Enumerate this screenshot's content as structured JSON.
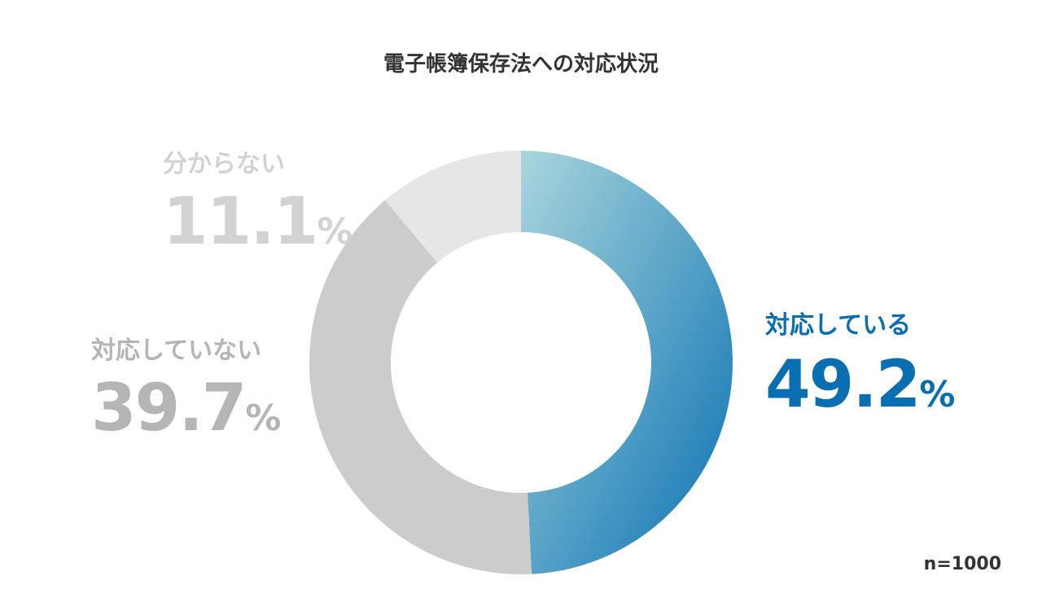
{
  "title": "電子帳簿保存法への対応状況",
  "sample_size": "n=1000",
  "colors": {
    "taiou_start": "#a9d6dc",
    "taiou_end": "#0a72b3",
    "not_taiou": "#cccccc",
    "unknown": "#e6e6e6",
    "label_taiou": "#0a6fb0",
    "label_not_taiou": "#b5b5b5",
    "label_unknown": "#d2d2d2"
  },
  "chart_data": {
    "type": "pie",
    "donut": true,
    "title": "電子帳簿保存法への対応状況",
    "categories": [
      "対応している",
      "対応していない",
      "分からない"
    ],
    "values": [
      49.2,
      39.7,
      11.1
    ],
    "unit": "%",
    "labels": {
      "taiou": {
        "category": "対応している",
        "value": "49.2",
        "unit": "%"
      },
      "not_taiou": {
        "category": "対応していない",
        "value": "39.7",
        "unit": "%"
      },
      "unknown": {
        "category": "分からない",
        "value": "11.1",
        "unit": "%"
      }
    }
  }
}
